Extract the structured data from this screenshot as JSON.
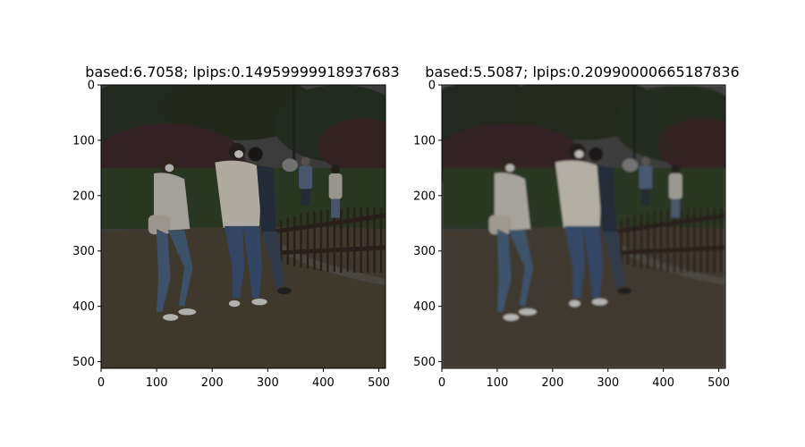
{
  "chart_data": [
    {
      "type": "image",
      "title": "based:6.7058; lpips:0.14959999918937683",
      "xlim": [
        0,
        512
      ],
      "ylim": [
        512,
        0
      ],
      "xticks": [
        "0",
        "100",
        "200",
        "300",
        "400",
        "500"
      ],
      "yticks": [
        "0",
        "100",
        "200",
        "300",
        "400",
        "500"
      ],
      "image": "dim outdoor photo: people in masks walking on a dirt path beside a wooden fence, trees and grass behind (sharper version)"
    },
    {
      "type": "image",
      "title": "based:5.5087; lpips:0.20990000665187836",
      "xlim": [
        0,
        512
      ],
      "ylim": [
        512,
        0
      ],
      "xticks": [
        "0",
        "100",
        "200",
        "300",
        "400",
        "500"
      ],
      "yticks": [
        "0",
        "100",
        "200",
        "300",
        "400",
        "500"
      ],
      "image": "same scene, blurrier reconstruction"
    }
  ]
}
